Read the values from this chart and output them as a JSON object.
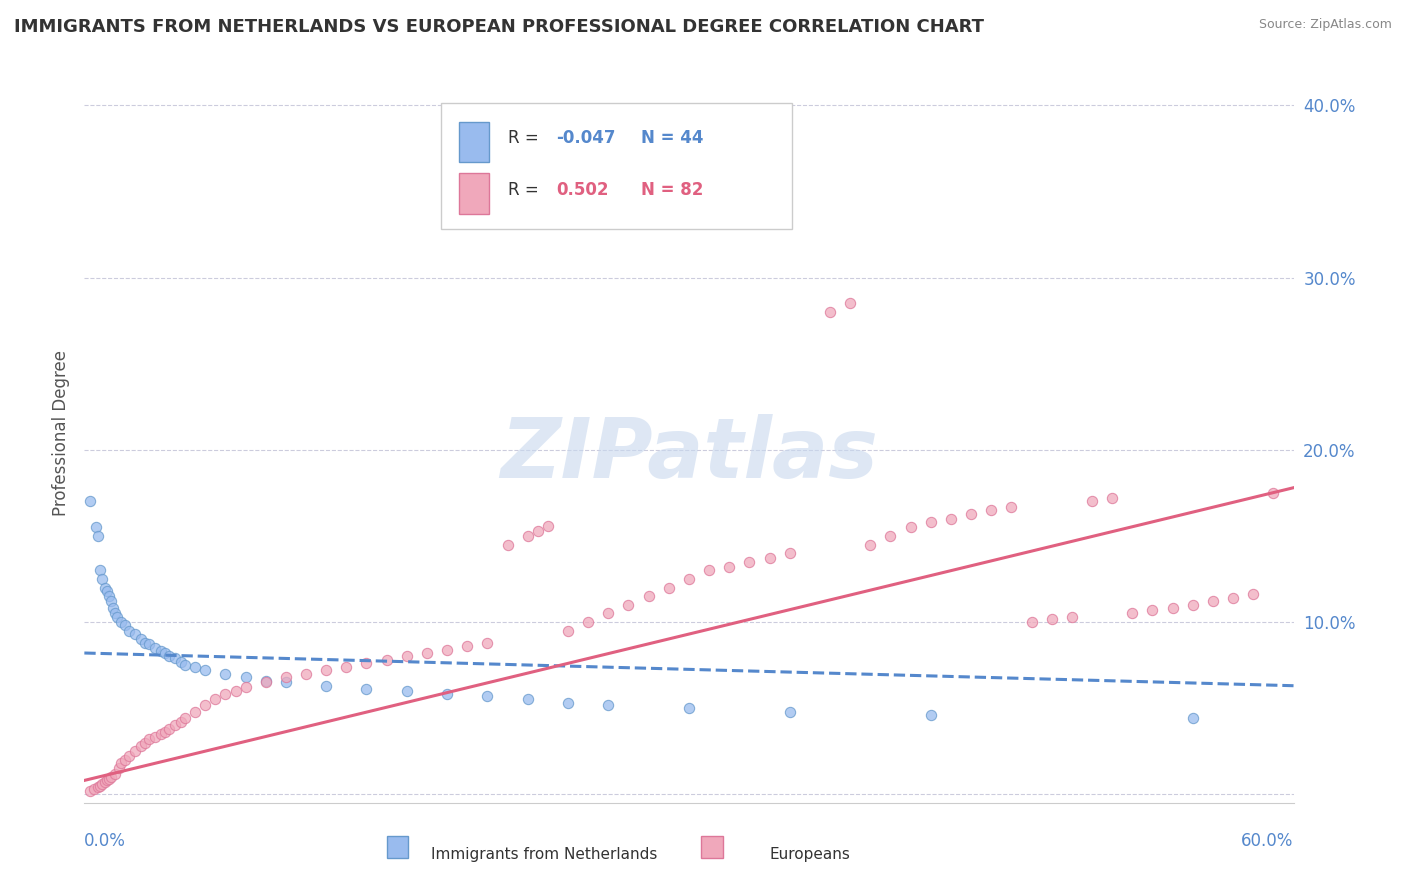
{
  "title": "IMMIGRANTS FROM NETHERLANDS VS EUROPEAN PROFESSIONAL DEGREE CORRELATION CHART",
  "source": "Source: ZipAtlas.com",
  "ylabel": "Professional Degree",
  "xlim": [
    0.0,
    0.6
  ],
  "ylim": [
    -0.005,
    0.425
  ],
  "background_color": "#ffffff",
  "grid_color": "#ccccdd",
  "watermark_text": "ZIPatlas",
  "blue_line_color": "#5588cc",
  "pink_line_color": "#e06080",
  "scatter_blue_color": "#99bbee",
  "scatter_pink_color": "#f0a8bb",
  "scatter_blue_edge": "#6699cc",
  "scatter_pink_edge": "#dd7799",
  "blue_line_x": [
    0.0,
    0.6
  ],
  "blue_line_y": [
    0.082,
    0.063
  ],
  "pink_line_x": [
    0.0,
    0.6
  ],
  "pink_line_y": [
    0.008,
    0.178
  ],
  "blue_scatter": [
    [
      0.003,
      0.17
    ],
    [
      0.006,
      0.155
    ],
    [
      0.007,
      0.15
    ],
    [
      0.008,
      0.13
    ],
    [
      0.009,
      0.125
    ],
    [
      0.01,
      0.12
    ],
    [
      0.011,
      0.118
    ],
    [
      0.012,
      0.115
    ],
    [
      0.013,
      0.112
    ],
    [
      0.014,
      0.108
    ],
    [
      0.015,
      0.105
    ],
    [
      0.016,
      0.103
    ],
    [
      0.018,
      0.1
    ],
    [
      0.02,
      0.098
    ],
    [
      0.022,
      0.095
    ],
    [
      0.025,
      0.093
    ],
    [
      0.028,
      0.09
    ],
    [
      0.03,
      0.088
    ],
    [
      0.032,
      0.087
    ],
    [
      0.035,
      0.085
    ],
    [
      0.038,
      0.083
    ],
    [
      0.04,
      0.082
    ],
    [
      0.042,
      0.08
    ],
    [
      0.045,
      0.079
    ],
    [
      0.048,
      0.077
    ],
    [
      0.05,
      0.075
    ],
    [
      0.055,
      0.074
    ],
    [
      0.06,
      0.072
    ],
    [
      0.07,
      0.07
    ],
    [
      0.08,
      0.068
    ],
    [
      0.09,
      0.066
    ],
    [
      0.1,
      0.065
    ],
    [
      0.12,
      0.063
    ],
    [
      0.14,
      0.061
    ],
    [
      0.16,
      0.06
    ],
    [
      0.18,
      0.058
    ],
    [
      0.2,
      0.057
    ],
    [
      0.22,
      0.055
    ],
    [
      0.24,
      0.053
    ],
    [
      0.26,
      0.052
    ],
    [
      0.3,
      0.05
    ],
    [
      0.35,
      0.048
    ],
    [
      0.42,
      0.046
    ],
    [
      0.55,
      0.044
    ]
  ],
  "pink_scatter": [
    [
      0.003,
      0.002
    ],
    [
      0.005,
      0.003
    ],
    [
      0.007,
      0.004
    ],
    [
      0.008,
      0.005
    ],
    [
      0.009,
      0.006
    ],
    [
      0.01,
      0.007
    ],
    [
      0.011,
      0.008
    ],
    [
      0.012,
      0.009
    ],
    [
      0.013,
      0.01
    ],
    [
      0.015,
      0.012
    ],
    [
      0.017,
      0.015
    ],
    [
      0.018,
      0.018
    ],
    [
      0.02,
      0.02
    ],
    [
      0.022,
      0.022
    ],
    [
      0.025,
      0.025
    ],
    [
      0.028,
      0.028
    ],
    [
      0.03,
      0.03
    ],
    [
      0.032,
      0.032
    ],
    [
      0.035,
      0.033
    ],
    [
      0.038,
      0.035
    ],
    [
      0.04,
      0.036
    ],
    [
      0.042,
      0.038
    ],
    [
      0.045,
      0.04
    ],
    [
      0.048,
      0.042
    ],
    [
      0.05,
      0.044
    ],
    [
      0.055,
      0.048
    ],
    [
      0.06,
      0.052
    ],
    [
      0.065,
      0.055
    ],
    [
      0.07,
      0.058
    ],
    [
      0.075,
      0.06
    ],
    [
      0.08,
      0.062
    ],
    [
      0.09,
      0.065
    ],
    [
      0.1,
      0.068
    ],
    [
      0.11,
      0.07
    ],
    [
      0.12,
      0.072
    ],
    [
      0.13,
      0.074
    ],
    [
      0.14,
      0.076
    ],
    [
      0.15,
      0.078
    ],
    [
      0.16,
      0.08
    ],
    [
      0.17,
      0.082
    ],
    [
      0.18,
      0.084
    ],
    [
      0.19,
      0.086
    ],
    [
      0.2,
      0.088
    ],
    [
      0.21,
      0.145
    ],
    [
      0.22,
      0.15
    ],
    [
      0.225,
      0.153
    ],
    [
      0.23,
      0.156
    ],
    [
      0.24,
      0.095
    ],
    [
      0.25,
      0.1
    ],
    [
      0.26,
      0.105
    ],
    [
      0.27,
      0.11
    ],
    [
      0.28,
      0.115
    ],
    [
      0.29,
      0.12
    ],
    [
      0.3,
      0.125
    ],
    [
      0.31,
      0.13
    ],
    [
      0.32,
      0.132
    ],
    [
      0.33,
      0.135
    ],
    [
      0.34,
      0.137
    ],
    [
      0.35,
      0.14
    ],
    [
      0.37,
      0.28
    ],
    [
      0.38,
      0.285
    ],
    [
      0.39,
      0.145
    ],
    [
      0.4,
      0.15
    ],
    [
      0.41,
      0.155
    ],
    [
      0.42,
      0.158
    ],
    [
      0.43,
      0.16
    ],
    [
      0.44,
      0.163
    ],
    [
      0.45,
      0.165
    ],
    [
      0.46,
      0.167
    ],
    [
      0.47,
      0.1
    ],
    [
      0.48,
      0.102
    ],
    [
      0.49,
      0.103
    ],
    [
      0.5,
      0.17
    ],
    [
      0.51,
      0.172
    ],
    [
      0.52,
      0.105
    ],
    [
      0.53,
      0.107
    ],
    [
      0.54,
      0.108
    ],
    [
      0.55,
      0.11
    ],
    [
      0.56,
      0.112
    ],
    [
      0.57,
      0.114
    ],
    [
      0.58,
      0.116
    ],
    [
      0.59,
      0.175
    ]
  ],
  "ytick_vals": [
    0.0,
    0.1,
    0.2,
    0.3,
    0.4
  ],
  "ytick_labels": [
    "",
    "10.0%",
    "20.0%",
    "30.0%",
    "40.0%"
  ],
  "tick_color": "#5588cc",
  "legend_R1": "-0.047",
  "legend_N1": "44",
  "legend_R2": "0.502",
  "legend_N2": "82",
  "marker_size": 55
}
